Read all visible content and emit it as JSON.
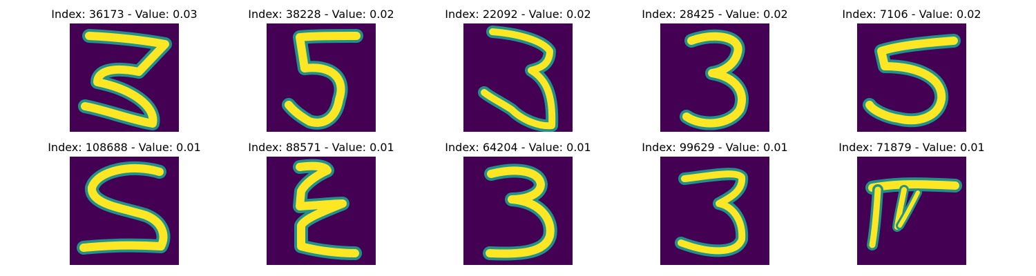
{
  "colors": {
    "background": "#440154",
    "stroke_edge": "#21918c",
    "stroke_mid": "#5ec962",
    "stroke_core": "#fde725"
  },
  "panels": [
    {
      "title": "Index: 36173 - Value: 0.03",
      "digit": "5"
    },
    {
      "title": "Index: 38228 - Value: 0.02",
      "digit": "5"
    },
    {
      "title": "Index: 22092 - Value: 0.02",
      "digit": "3"
    },
    {
      "title": "Index: 28425 - Value: 0.02",
      "digit": "3"
    },
    {
      "title": "Index: 7106 - Value: 0.02",
      "digit": "5"
    },
    {
      "title": "Index: 108688 - Value: 0.01",
      "digit": "5"
    },
    {
      "title": "Index: 88571 - Value: 0.01",
      "digit": "E"
    },
    {
      "title": "Index: 64204 - Value: 0.01",
      "digit": "3"
    },
    {
      "title": "Index: 99629 - Value: 0.01",
      "digit": "3"
    },
    {
      "title": "Index: 71879 - Value: 0.01",
      "digit": "T"
    }
  ]
}
